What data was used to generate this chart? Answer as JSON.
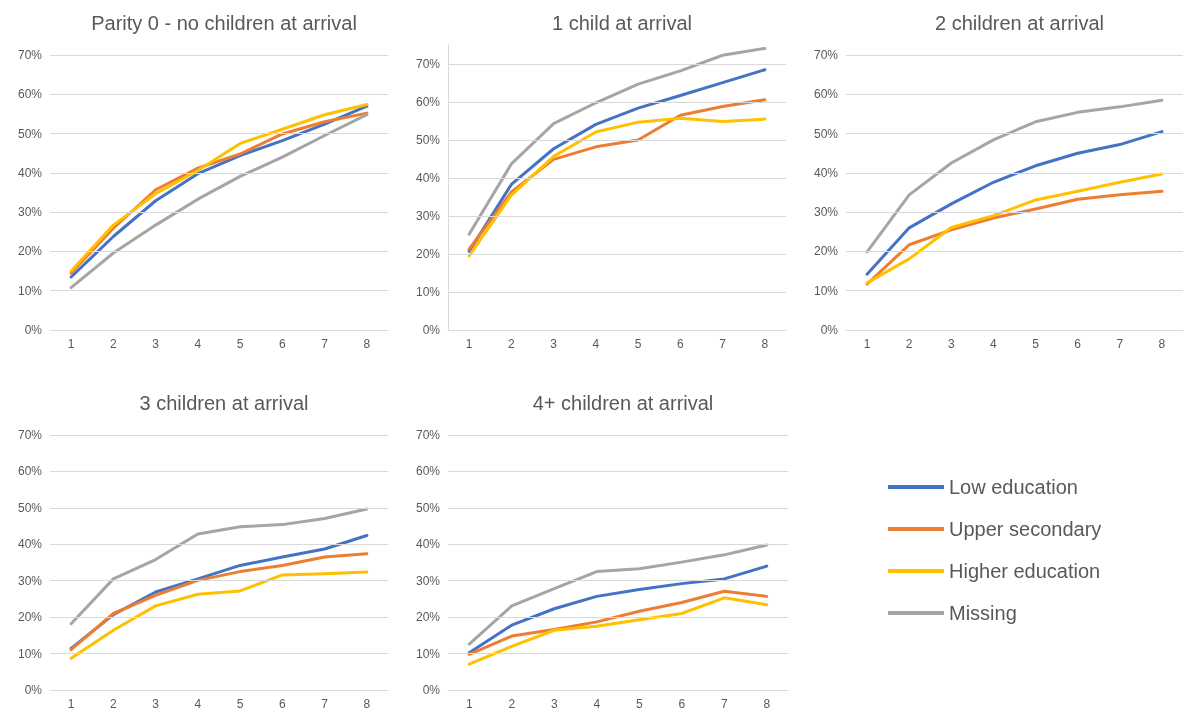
{
  "chart_data": [
    {
      "type": "line",
      "title": "Parity 0 - no children at arrival",
      "categories": [
        "1",
        "2",
        "3",
        "4",
        "5",
        "6",
        "7",
        "8"
      ],
      "ylim": [
        0,
        70
      ],
      "yticks": [
        {
          "value": 0,
          "label": "0%"
        },
        {
          "value": 10,
          "label": "10%"
        },
        {
          "value": 20,
          "label": "20%"
        },
        {
          "value": 30,
          "label": "30%"
        },
        {
          "value": 40,
          "label": "40%"
        },
        {
          "value": 50,
          "label": "50%"
        },
        {
          "value": 60,
          "label": "60%"
        },
        {
          "value": 70,
          "label": "70%"
        }
      ],
      "grid": "y",
      "legend": false,
      "marker": "none",
      "line_style": "solid",
      "series": [
        {
          "color": "#4472c4",
          "values": [
            13.5,
            23.8,
            32.9,
            39.8,
            44.4,
            48.2,
            52.4,
            57
          ]
        },
        {
          "color": "#ed7d31",
          "values": [
            14.5,
            25.9,
            35.7,
            41.2,
            44.8,
            49.9,
            53,
            55.2
          ]
        },
        {
          "color": "#ffc000",
          "values": [
            15,
            26.7,
            34.7,
            40.6,
            47.5,
            51.1,
            54.8,
            57.4
          ]
        },
        {
          "color": "#a5a5a5",
          "values": [
            10.8,
            19.6,
            26.7,
            33.3,
            39.1,
            44,
            49.5,
            54.8
          ]
        }
      ]
    },
    {
      "type": "line",
      "title": "1 child at arrival",
      "categories": [
        "1",
        "2",
        "3",
        "4",
        "5",
        "6",
        "7",
        "8"
      ],
      "ylim": [
        0,
        75
      ],
      "yticks": [
        {
          "value": 0,
          "label": "0%"
        },
        {
          "value": 10,
          "label": "10%"
        },
        {
          "value": 20,
          "label": "20%"
        },
        {
          "value": 30,
          "label": "30%"
        },
        {
          "value": 40,
          "label": "40%"
        },
        {
          "value": 50,
          "label": "50%"
        },
        {
          "value": 60,
          "label": "60%"
        },
        {
          "value": 70,
          "label": "70%"
        }
      ],
      "grid": "y",
      "legend": false,
      "marker": "none",
      "line_style": "solid",
      "series": [
        {
          "color": "#4472c4",
          "values": [
            20.7,
            38.3,
            47.7,
            54.1,
            58.4,
            61.7,
            65.1,
            68.5
          ]
        },
        {
          "color": "#ed7d31",
          "values": [
            21.3,
            36.3,
            44.9,
            48.2,
            50,
            56.5,
            58.8,
            60.6
          ]
        },
        {
          "color": "#ffc000",
          "values": [
            19.5,
            35.5,
            45.7,
            52.1,
            54.7,
            55.7,
            54.9,
            55.5
          ]
        },
        {
          "color": "#a5a5a5",
          "values": [
            25.2,
            43.7,
            54.3,
            59.8,
            64.7,
            68.2,
            72.3,
            74.1
          ]
        }
      ]
    },
    {
      "type": "line",
      "title": "2 children at arrival",
      "categories": [
        "1",
        "2",
        "3",
        "4",
        "5",
        "6",
        "7",
        "8"
      ],
      "ylim": [
        0,
        70
      ],
      "yticks": [
        {
          "value": 0,
          "label": "0%"
        },
        {
          "value": 10,
          "label": "10%"
        },
        {
          "value": 20,
          "label": "20%"
        },
        {
          "value": 30,
          "label": "30%"
        },
        {
          "value": 40,
          "label": "40%"
        },
        {
          "value": 50,
          "label": "50%"
        },
        {
          "value": 60,
          "label": "60%"
        },
        {
          "value": 70,
          "label": "70%"
        }
      ],
      "grid": "y",
      "legend": false,
      "marker": "none",
      "line_style": "solid",
      "series": [
        {
          "color": "#4472c4",
          "values": [
            14.2,
            26,
            32.1,
            37.6,
            41.8,
            45,
            47.2,
            50.5
          ]
        },
        {
          "color": "#ed7d31",
          "values": [
            11.7,
            21.7,
            25.5,
            28.5,
            30.8,
            33.3,
            34.4,
            35.3
          ]
        },
        {
          "color": "#ffc000",
          "values": [
            12,
            18.1,
            26.1,
            29.1,
            33.1,
            35.3,
            37.6,
            39.7
          ]
        },
        {
          "color": "#a5a5a5",
          "values": [
            19.9,
            34.4,
            42.5,
            48.4,
            53,
            55.4,
            56.8,
            58.5
          ]
        }
      ]
    },
    {
      "type": "line",
      "title": "3 children at arrival",
      "categories": [
        "1",
        "2",
        "3",
        "4",
        "5",
        "6",
        "7",
        "8"
      ],
      "ylim": [
        0,
        70
      ],
      "yticks": [
        {
          "value": 0,
          "label": "0%"
        },
        {
          "value": 10,
          "label": "10%"
        },
        {
          "value": 20,
          "label": "20%"
        },
        {
          "value": 30,
          "label": "30%"
        },
        {
          "value": 40,
          "label": "40%"
        },
        {
          "value": 50,
          "label": "50%"
        },
        {
          "value": 60,
          "label": "60%"
        },
        {
          "value": 70,
          "label": "70%"
        }
      ],
      "grid": "y",
      "legend": false,
      "marker": "none",
      "line_style": "solid",
      "series": [
        {
          "color": "#4472c4",
          "values": [
            11.4,
            20.7,
            26.9,
            30.5,
            34.2,
            36.5,
            38.7,
            42.4
          ]
        },
        {
          "color": "#ed7d31",
          "values": [
            11.1,
            21,
            26,
            30.1,
            32.5,
            34.2,
            36.5,
            37.4
          ]
        },
        {
          "color": "#ffc000",
          "values": [
            8.7,
            16.4,
            23.1,
            26.3,
            27.2,
            31.6,
            31.9,
            32.4
          ]
        },
        {
          "color": "#a5a5a5",
          "values": [
            18.2,
            30.5,
            35.8,
            42.8,
            44.8,
            45.4,
            47.1,
            49.7
          ]
        }
      ]
    },
    {
      "type": "line",
      "title": "4+ children at arrival",
      "categories": [
        "1",
        "2",
        "3",
        "4",
        "5",
        "6",
        "7",
        "8"
      ],
      "ylim": [
        0,
        70
      ],
      "yticks": [
        {
          "value": 0,
          "label": "0%"
        },
        {
          "value": 10,
          "label": "10%"
        },
        {
          "value": 20,
          "label": "20%"
        },
        {
          "value": 30,
          "label": "30%"
        },
        {
          "value": 40,
          "label": "40%"
        },
        {
          "value": 50,
          "label": "50%"
        },
        {
          "value": 60,
          "label": "60%"
        },
        {
          "value": 70,
          "label": "70%"
        }
      ],
      "grid": "y",
      "legend": "right",
      "marker": "none",
      "line_style": "solid",
      "series": [
        {
          "name": "Low education",
          "color": "#4472c4",
          "values": [
            10.2,
            17.8,
            22.3,
            25.7,
            27.6,
            29.2,
            30.5,
            34
          ]
        },
        {
          "name": "Upper secondary",
          "color": "#ed7d31",
          "values": [
            9.8,
            14.8,
            16.6,
            18.7,
            21.6,
            24,
            27.1,
            25.7
          ]
        },
        {
          "name": "Higher education",
          "color": "#ffc000",
          "values": [
            7.1,
            12,
            16.4,
            17.5,
            19.3,
            21,
            25.3,
            23.4
          ]
        },
        {
          "name": "Missing",
          "color": "#a5a5a5",
          "values": [
            12.6,
            23.1,
            27.8,
            32.5,
            33.3,
            35.1,
            37.1,
            39.8
          ]
        }
      ]
    }
  ]
}
